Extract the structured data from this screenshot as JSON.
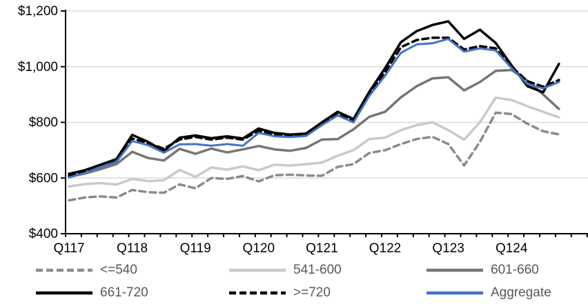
{
  "chart_data": {
    "type": "line",
    "title": "",
    "xlabel": "",
    "ylabel": "",
    "grid": "horizontal",
    "legend_position": "bottom",
    "categories": [
      "Q117",
      "Q217",
      "Q317",
      "Q417",
      "Q118",
      "Q218",
      "Q318",
      "Q418",
      "Q119",
      "Q219",
      "Q319",
      "Q419",
      "Q120",
      "Q220",
      "Q320",
      "Q420",
      "Q121",
      "Q221",
      "Q321",
      "Q421",
      "Q122",
      "Q222",
      "Q322",
      "Q422",
      "Q123",
      "Q223",
      "Q323",
      "Q423",
      "Q124",
      "Q224",
      "Q324",
      "Q424"
    ],
    "x_axis_shown_labels": [
      "Q117",
      "Q118",
      "Q119",
      "Q120",
      "Q121",
      "Q122",
      "Q123",
      "Q124"
    ],
    "ylim": [
      400,
      1200
    ],
    "y_ticks": {
      "values": [
        400,
        600,
        800,
        1000,
        1200
      ],
      "labels": [
        "$400",
        "$600",
        "$800",
        "$1,000",
        "$1,200"
      ]
    },
    "series": [
      {
        "name": "<=540",
        "color": "#8a8a8a",
        "dash": true,
        "width": 3.5,
        "values": [
          520,
          530,
          534,
          530,
          557,
          549,
          547,
          577,
          563,
          600,
          597,
          607,
          588,
          610,
          612,
          609,
          608,
          640,
          650,
          690,
          700,
          722,
          740,
          748,
          722,
          645,
          730,
          835,
          830,
          795,
          768,
          757
        ]
      },
      {
        "name": "541-600",
        "color": "#c9c9c9",
        "dash": false,
        "width": 3.5,
        "values": [
          570,
          578,
          582,
          576,
          597,
          589,
          592,
          629,
          604,
          638,
          630,
          642,
          628,
          648,
          645,
          650,
          655,
          680,
          700,
          740,
          745,
          772,
          790,
          800,
          772,
          738,
          800,
          889,
          880,
          858,
          838,
          818
        ]
      },
      {
        "name": "601-660",
        "color": "#757575",
        "dash": false,
        "width": 3.5,
        "values": [
          605,
          616,
          632,
          650,
          694,
          672,
          663,
          705,
          687,
          706,
          692,
          703,
          715,
          703,
          698,
          708,
          738,
          740,
          775,
          820,
          838,
          890,
          930,
          958,
          962,
          915,
          945,
          985,
          988,
          950,
          900,
          848
        ]
      },
      {
        "name": "661-720",
        "color": "#000000",
        "dash": false,
        "width": 3.5,
        "values": [
          615,
          628,
          648,
          668,
          755,
          730,
          697,
          745,
          753,
          743,
          750,
          742,
          778,
          762,
          756,
          760,
          800,
          838,
          812,
          910,
          995,
          1088,
          1128,
          1150,
          1163,
          1100,
          1133,
          1085,
          1005,
          930,
          908,
          1010
        ]
      },
      {
        "name": ">=720",
        "color": "#000000",
        "dash": true,
        "width": 3.5,
        "values": [
          608,
          622,
          643,
          662,
          742,
          726,
          705,
          738,
          748,
          738,
          745,
          738,
          770,
          757,
          751,
          755,
          796,
          830,
          806,
          902,
          980,
          1070,
          1096,
          1104,
          1104,
          1062,
          1074,
          1066,
          1000,
          948,
          928,
          952
        ]
      },
      {
        "name": "Aggregate",
        "color": "#4472c4",
        "dash": false,
        "width": 3,
        "values": [
          602,
          618,
          640,
          658,
          733,
          718,
          691,
          721,
          722,
          716,
          722,
          716,
          762,
          750,
          747,
          751,
          790,
          825,
          800,
          895,
          968,
          1050,
          1080,
          1084,
          1100,
          1054,
          1066,
          1058,
          995,
          938,
          922,
          945
        ]
      }
    ],
    "colors": {
      "grid": "#d9d9d9",
      "axis": "#000000",
      "tick_label": "#000000",
      "legend_text": "#595959"
    }
  }
}
